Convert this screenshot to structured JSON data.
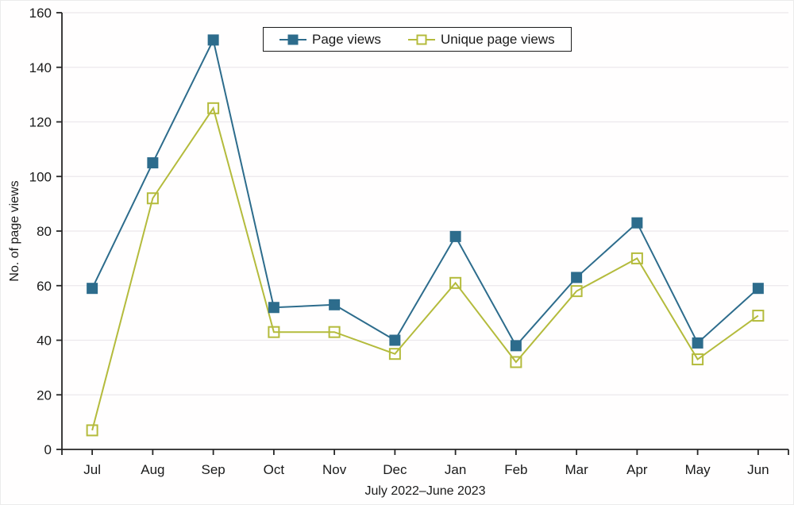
{
  "chart_data": {
    "type": "line",
    "title": "",
    "categories": [
      "Jul",
      "Aug",
      "Sep",
      "Oct",
      "Nov",
      "Dec",
      "Jan",
      "Feb",
      "Mar",
      "Apr",
      "May",
      "Jun"
    ],
    "series": [
      {
        "name": "Page views",
        "values": [
          59,
          105,
          150,
          52,
          53,
          40,
          78,
          38,
          63,
          83,
          39,
          59
        ],
        "color": "#2d6c8c",
        "marker": "filled-square"
      },
      {
        "name": "Unique page views",
        "values": [
          7,
          92,
          125,
          43,
          43,
          35,
          61,
          32,
          58,
          70,
          33,
          49
        ],
        "color": "#b4bb3c",
        "marker": "open-square"
      }
    ],
    "xlabel": "July 2022–June 2023",
    "ylabel": "No. of page views",
    "ylim": [
      0,
      160
    ],
    "ytick_step": 20,
    "grid": "horizontal",
    "legend_position": "top-center",
    "style": {
      "axis_color": "#262626",
      "grid_color": "#ece8ec",
      "text_color": "#1a1a1a",
      "tick_font_size": 17
    }
  }
}
